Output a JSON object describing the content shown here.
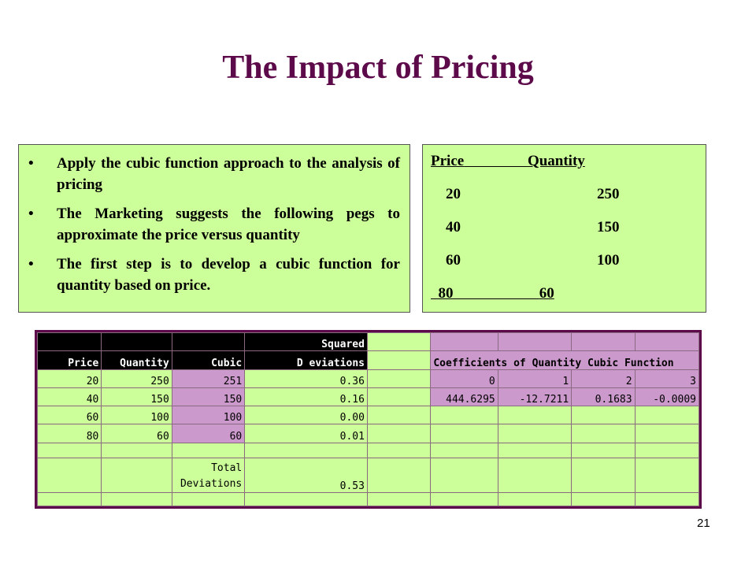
{
  "title": "The Impact of Pricing",
  "bullets": [
    "Apply the cubic function approach to the analysis of pricing",
    "The Marketing suggests the following pegs to approximate the price versus quantity",
    "The first step is to develop a cubic function for quantity based on price."
  ],
  "bullet_glyph": "•",
  "price_quantity": {
    "price_header": "Price",
    "quantity_header": "Quantity",
    "rows": [
      {
        "price": "20",
        "quantity": "250"
      },
      {
        "price": "40",
        "quantity": "150"
      },
      {
        "price": "60",
        "quantity": "100"
      },
      {
        "price": "80",
        "quantity": "60"
      }
    ]
  },
  "spreadsheet": {
    "headers": {
      "price": "Price",
      "quantity": "Quantity",
      "cubic": "Cubic",
      "squared": "Squared",
      "deviations": "D eviations",
      "coefficients": "Coefficients of Quantity Cubic Function"
    },
    "rows": [
      {
        "price": "20",
        "quantity": "250",
        "cubic": "251",
        "dev": "0.36"
      },
      {
        "price": "40",
        "quantity": "150",
        "cubic": "150",
        "dev": "0.16"
      },
      {
        "price": "60",
        "quantity": "100",
        "cubic": "100",
        "dev": "0.00"
      },
      {
        "price": "80",
        "quantity": "60",
        "cubic": "60",
        "dev": "0.01"
      }
    ],
    "coef_indices": [
      "0",
      "1",
      "2",
      "3"
    ],
    "coef_values": [
      "444.6295",
      "-12.7211",
      "0.1683",
      "-0.0009"
    ],
    "total_label_1": "Total",
    "total_label_2": "Deviations",
    "total_value": "0.53"
  },
  "page_number": "21",
  "colors": {
    "title": "#5c0a4a",
    "panel": "#ccff99",
    "purple_cell": "#cc99cc",
    "frame": "#5c0a4a"
  }
}
